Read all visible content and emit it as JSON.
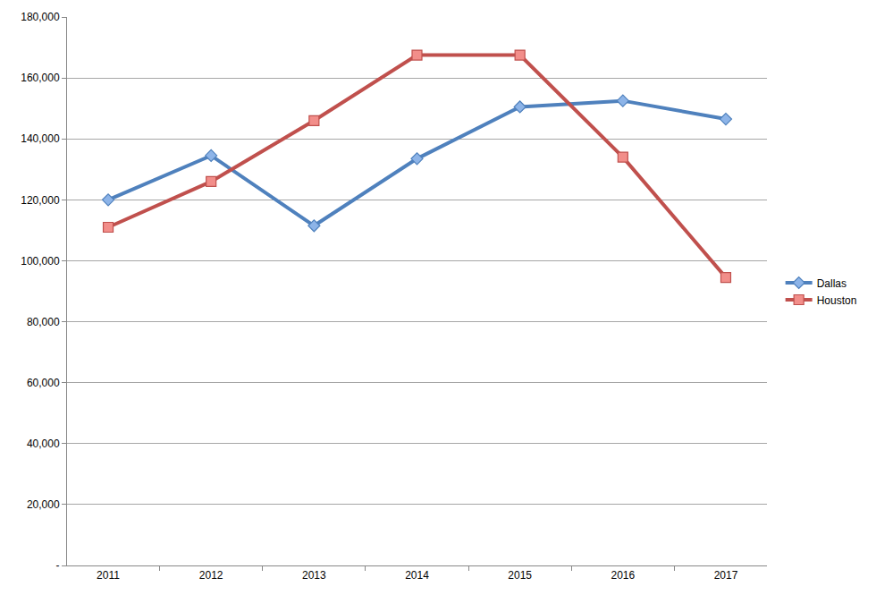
{
  "chart_data": {
    "type": "line",
    "categories": [
      "2011",
      "2012",
      "2013",
      "2014",
      "2015",
      "2016",
      "2017"
    ],
    "series": [
      {
        "name": "Dallas",
        "color": "#4f81bd",
        "marker": "diamond",
        "line_style": "solid",
        "values": [
          120000,
          134500,
          111500,
          133500,
          150500,
          152500,
          146500
        ]
      },
      {
        "name": "Houston",
        "color": "#c0504d",
        "marker": "square",
        "line_style": "solid",
        "values": [
          111000,
          126000,
          146000,
          167500,
          167500,
          134000,
          94500
        ]
      }
    ],
    "ylim": [
      0,
      180000
    ],
    "yticks": [
      {
        "value": 0,
        "label": "-"
      },
      {
        "value": 20000,
        "label": "20,000"
      },
      {
        "value": 40000,
        "label": "40,000"
      },
      {
        "value": 60000,
        "label": "60,000"
      },
      {
        "value": 80000,
        "label": "80,000"
      },
      {
        "value": 100000,
        "label": "100,000"
      },
      {
        "value": 120000,
        "label": "120,000"
      },
      {
        "value": 140000,
        "label": "140,000"
      },
      {
        "value": 160000,
        "label": "160,000"
      },
      {
        "value": 180000,
        "label": "180,000"
      }
    ],
    "grid": true,
    "legend": "right"
  }
}
